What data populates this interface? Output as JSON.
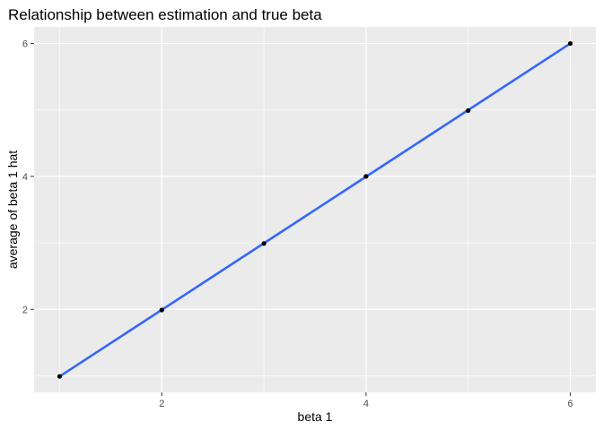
{
  "chart_data": {
    "type": "scatter",
    "title": "Relationship between estimation and true beta",
    "xlabel": "beta 1",
    "ylabel": "average of beta 1 hat",
    "x": [
      1,
      2,
      3,
      4,
      5,
      6
    ],
    "y": [
      0.99,
      1.99,
      2.99,
      4.0,
      4.99,
      6.0
    ],
    "fit_line": {
      "x": [
        1,
        6
      ],
      "y": [
        0.99,
        6.0
      ]
    },
    "xlim": [
      0.75,
      6.25
    ],
    "ylim": [
      0.75,
      6.25
    ],
    "x_ticks": [
      2,
      4,
      6
    ],
    "x_minor": [
      1,
      3,
      5
    ],
    "y_ticks": [
      2,
      4,
      6
    ],
    "y_minor": [
      1,
      3,
      5
    ],
    "x_tick_labels": [
      "2",
      "4",
      "6"
    ],
    "y_tick_labels": [
      "2",
      "4",
      "6"
    ],
    "grid": true,
    "legend": "none",
    "colors": {
      "panel": "#ebebeb",
      "grid": "#ffffff",
      "line": "#3366ff",
      "point": "#000000"
    }
  }
}
